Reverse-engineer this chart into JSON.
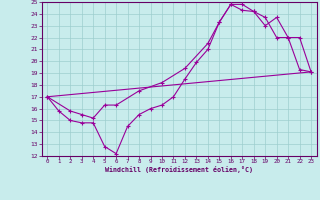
{
  "xlabel": "Windchill (Refroidissement éolien,°C)",
  "bg_color": "#c8ecec",
  "line_color": "#990099",
  "grid_color": "#9dcece",
  "xlim": [
    -0.5,
    23.5
  ],
  "ylim": [
    12,
    25
  ],
  "xticks": [
    0,
    1,
    2,
    3,
    4,
    5,
    6,
    7,
    8,
    9,
    10,
    11,
    12,
    13,
    14,
    15,
    16,
    17,
    18,
    19,
    20,
    21,
    22,
    23
  ],
  "yticks": [
    12,
    13,
    14,
    15,
    16,
    17,
    18,
    19,
    20,
    21,
    22,
    23,
    24,
    25
  ],
  "line1_x": [
    0,
    1,
    2,
    3,
    4,
    5,
    6,
    7,
    8,
    9,
    10,
    11,
    12,
    13,
    14,
    15,
    16,
    17,
    18,
    19,
    20,
    21,
    22,
    23
  ],
  "line1_y": [
    17.0,
    15.8,
    15.0,
    14.8,
    14.8,
    12.8,
    12.2,
    14.5,
    15.5,
    16.0,
    16.3,
    17.0,
    18.5,
    19.9,
    21.0,
    23.3,
    24.8,
    24.8,
    24.2,
    23.7,
    22.0,
    22.0,
    19.3,
    19.1
  ],
  "line2_x": [
    0,
    2,
    3,
    4,
    5,
    6,
    8,
    10,
    12,
    14,
    15,
    16,
    17,
    18,
    19,
    20,
    21,
    22,
    23
  ],
  "line2_y": [
    17.0,
    15.8,
    15.5,
    15.2,
    16.3,
    16.3,
    17.5,
    18.2,
    19.4,
    21.5,
    23.3,
    24.8,
    24.3,
    24.2,
    23.0,
    23.7,
    22.0,
    22.0,
    19.1
  ],
  "line3_x": [
    0,
    23
  ],
  "line3_y": [
    17.0,
    19.1
  ]
}
